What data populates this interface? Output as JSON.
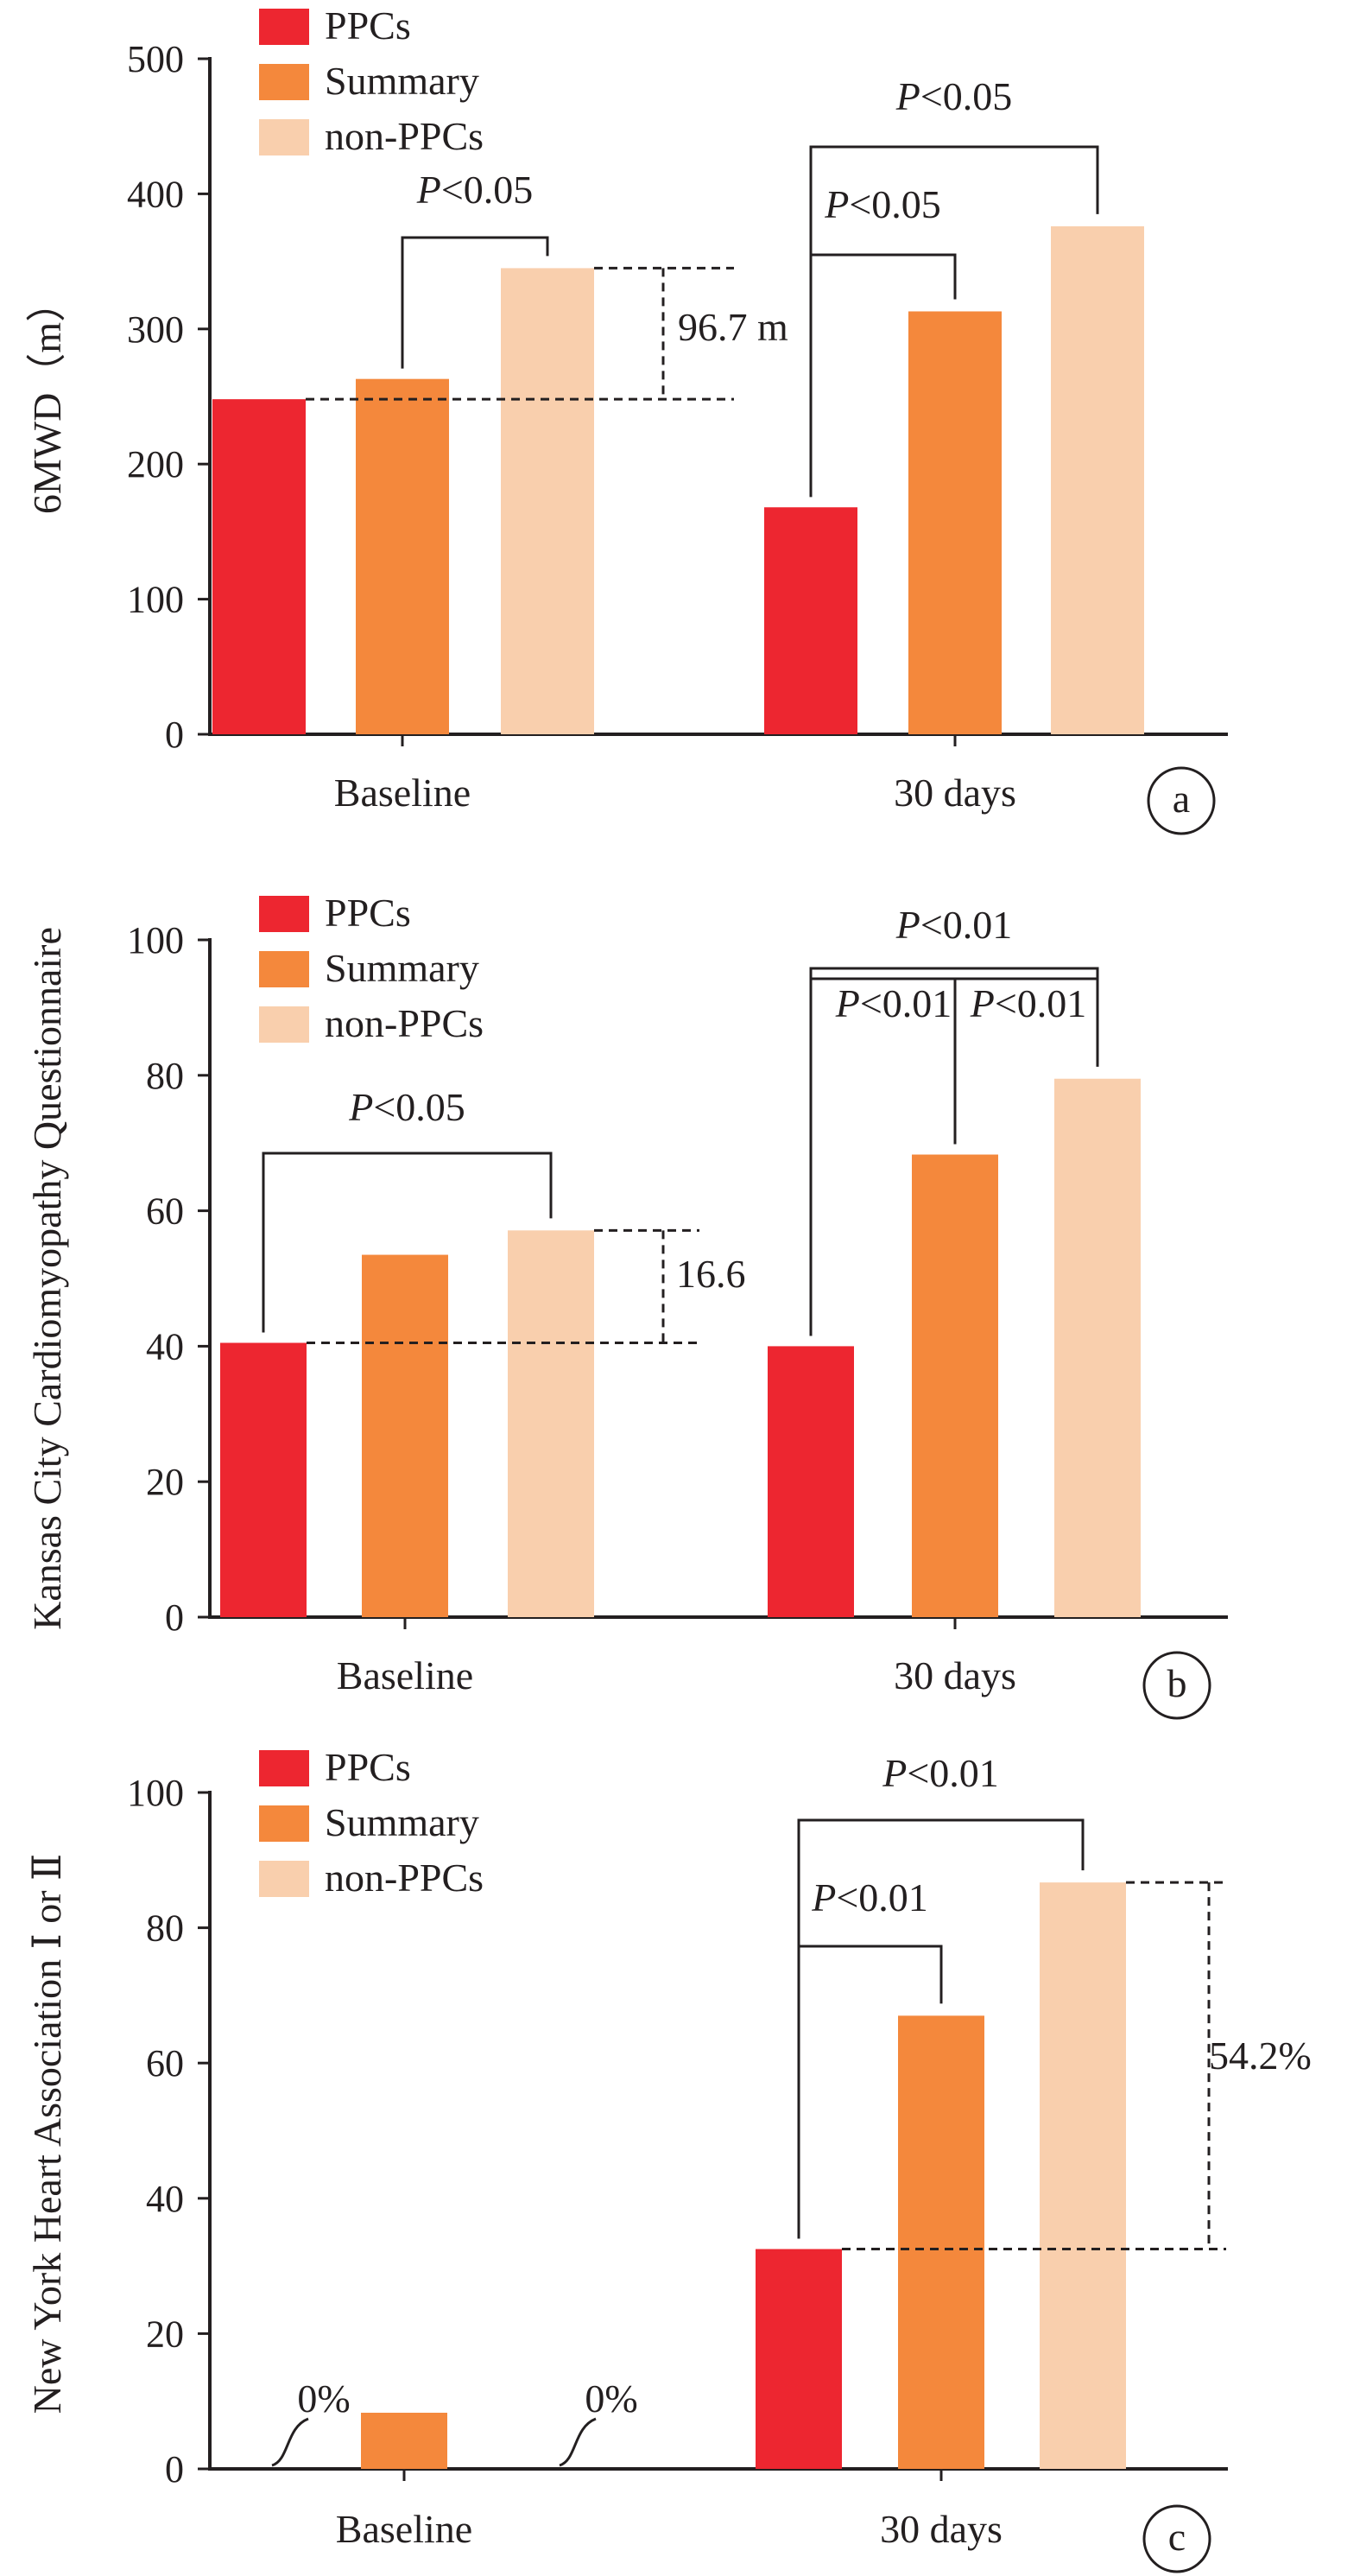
{
  "colors": {
    "PPCs": "#ed2630",
    "Summary": "#f4883c",
    "non-PPCs": "#f9cfad",
    "ink": "#231f20"
  },
  "chart_data": [
    {
      "panel": "a",
      "type": "bar",
      "ylabel": "6MWD（m）",
      "ylim": [
        0,
        500
      ],
      "yticks": [
        "0",
        "100",
        "200",
        "300",
        "400",
        "500"
      ],
      "categories": [
        "Baseline",
        "30 days"
      ],
      "legend": [
        "PPCs",
        "Summary",
        "non-PPCs"
      ],
      "legend_position": "top-left",
      "series": [
        {
          "name": "PPCs",
          "values": [
            248,
            168
          ]
        },
        {
          "name": "Summary",
          "values": [
            263,
            313
          ]
        },
        {
          "name": "non-PPCs",
          "values": [
            345,
            376
          ]
        }
      ],
      "brackets": [
        {
          "label": "P<0.05",
          "from_cat": 0,
          "from_series": 1,
          "to_cat": 0,
          "to_series": 2
        },
        {
          "label": "P<0.05",
          "from_cat": 1,
          "from_series": 0,
          "to_cat": 1,
          "to_series": 1
        },
        {
          "label": "P<0.05",
          "from_cat": 1,
          "from_series": 0,
          "to_cat": 1,
          "to_series": 2
        }
      ],
      "difference": {
        "label": "96.7 m",
        "category": 0,
        "low": 248,
        "high": 345
      }
    },
    {
      "panel": "b",
      "type": "bar",
      "ylabel": "Kansas City Cardiomyopathy Questionnaire",
      "ylim": [
        0,
        100
      ],
      "yticks": [
        "0",
        "20",
        "40",
        "60",
        "80",
        "100"
      ],
      "categories": [
        "Baseline",
        "30 days"
      ],
      "legend": [
        "PPCs",
        "Summary",
        "non-PPCs"
      ],
      "legend_position": "top-left",
      "series": [
        {
          "name": "PPCs",
          "values": [
            40.5,
            40
          ]
        },
        {
          "name": "Summary",
          "values": [
            53.5,
            68.3
          ]
        },
        {
          "name": "non-PPCs",
          "values": [
            57.1,
            79.5
          ]
        }
      ],
      "brackets": [
        {
          "label": "P<0.05",
          "from_cat": 0,
          "from_series": 0,
          "to_cat": 0,
          "to_series": 2
        },
        {
          "label": "P<0.01",
          "from_cat": 1,
          "from_series": 0,
          "to_cat": 1,
          "to_series": 1
        },
        {
          "label": "P<0.01",
          "from_cat": 1,
          "from_series": 1,
          "to_cat": 1,
          "to_series": 2
        },
        {
          "label": "P<0.01",
          "from_cat": 1,
          "from_series": 0,
          "to_cat": 1,
          "to_series": 2
        }
      ],
      "difference": {
        "label": "16.6",
        "category": 0,
        "low": 40.5,
        "high": 57.1
      }
    },
    {
      "panel": "c",
      "type": "bar",
      "ylabel": "New York Heart Association Ⅰ or Ⅱ",
      "ylim": [
        0,
        100
      ],
      "yticks": [
        "0",
        "20",
        "40",
        "60",
        "80",
        "100"
      ],
      "categories": [
        "Baseline",
        "30 days"
      ],
      "legend": [
        "PPCs",
        "Summary",
        "non-PPCs"
      ],
      "legend_position": "top-left",
      "series": [
        {
          "name": "PPCs",
          "values": [
            0,
            32.5
          ]
        },
        {
          "name": "Summary",
          "values": [
            8.3,
            67
          ]
        },
        {
          "name": "non-PPCs",
          "values": [
            0,
            86.7
          ]
        }
      ],
      "zero_labels": [
        {
          "label": "0%",
          "category": 0,
          "series": 0
        },
        {
          "label": "0%",
          "category": 0,
          "series": 2
        }
      ],
      "brackets": [
        {
          "label": "P<0.01",
          "from_cat": 1,
          "from_series": 0,
          "to_cat": 1,
          "to_series": 1
        },
        {
          "label": "P<0.01",
          "from_cat": 1,
          "from_series": 0,
          "to_cat": 1,
          "to_series": 2
        }
      ],
      "difference": {
        "label": "54.2%",
        "category": 1,
        "low": 32.5,
        "high": 86.7
      }
    }
  ]
}
